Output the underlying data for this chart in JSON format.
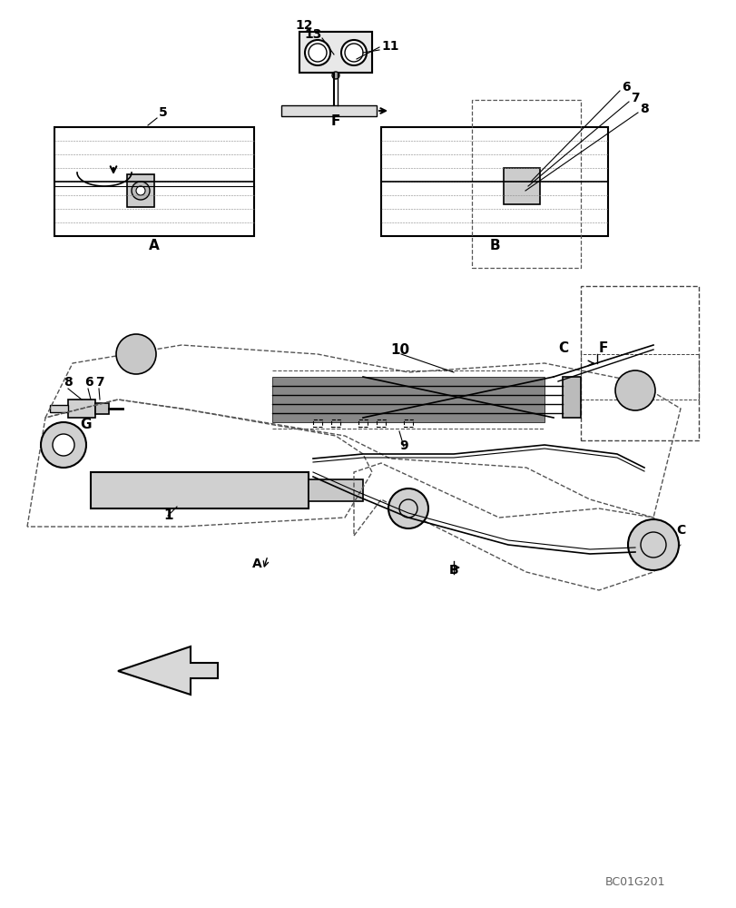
{
  "title": "BC01G201",
  "bg_color": "#ffffff",
  "line_color": "#000000",
  "dashed_color": "#555555",
  "labels": {
    "F_arrow_top": "F",
    "A_detail": "A",
    "B_detail": "B",
    "G_detail": "G",
    "C_label": "C",
    "F_label": "F",
    "A_arrow": "A",
    "B_arrow": "B"
  },
  "part_numbers": [
    "1",
    "5",
    "6",
    "7",
    "8",
    "9",
    "10",
    "11",
    "12",
    "13"
  ],
  "figure_code": "BC01G201"
}
